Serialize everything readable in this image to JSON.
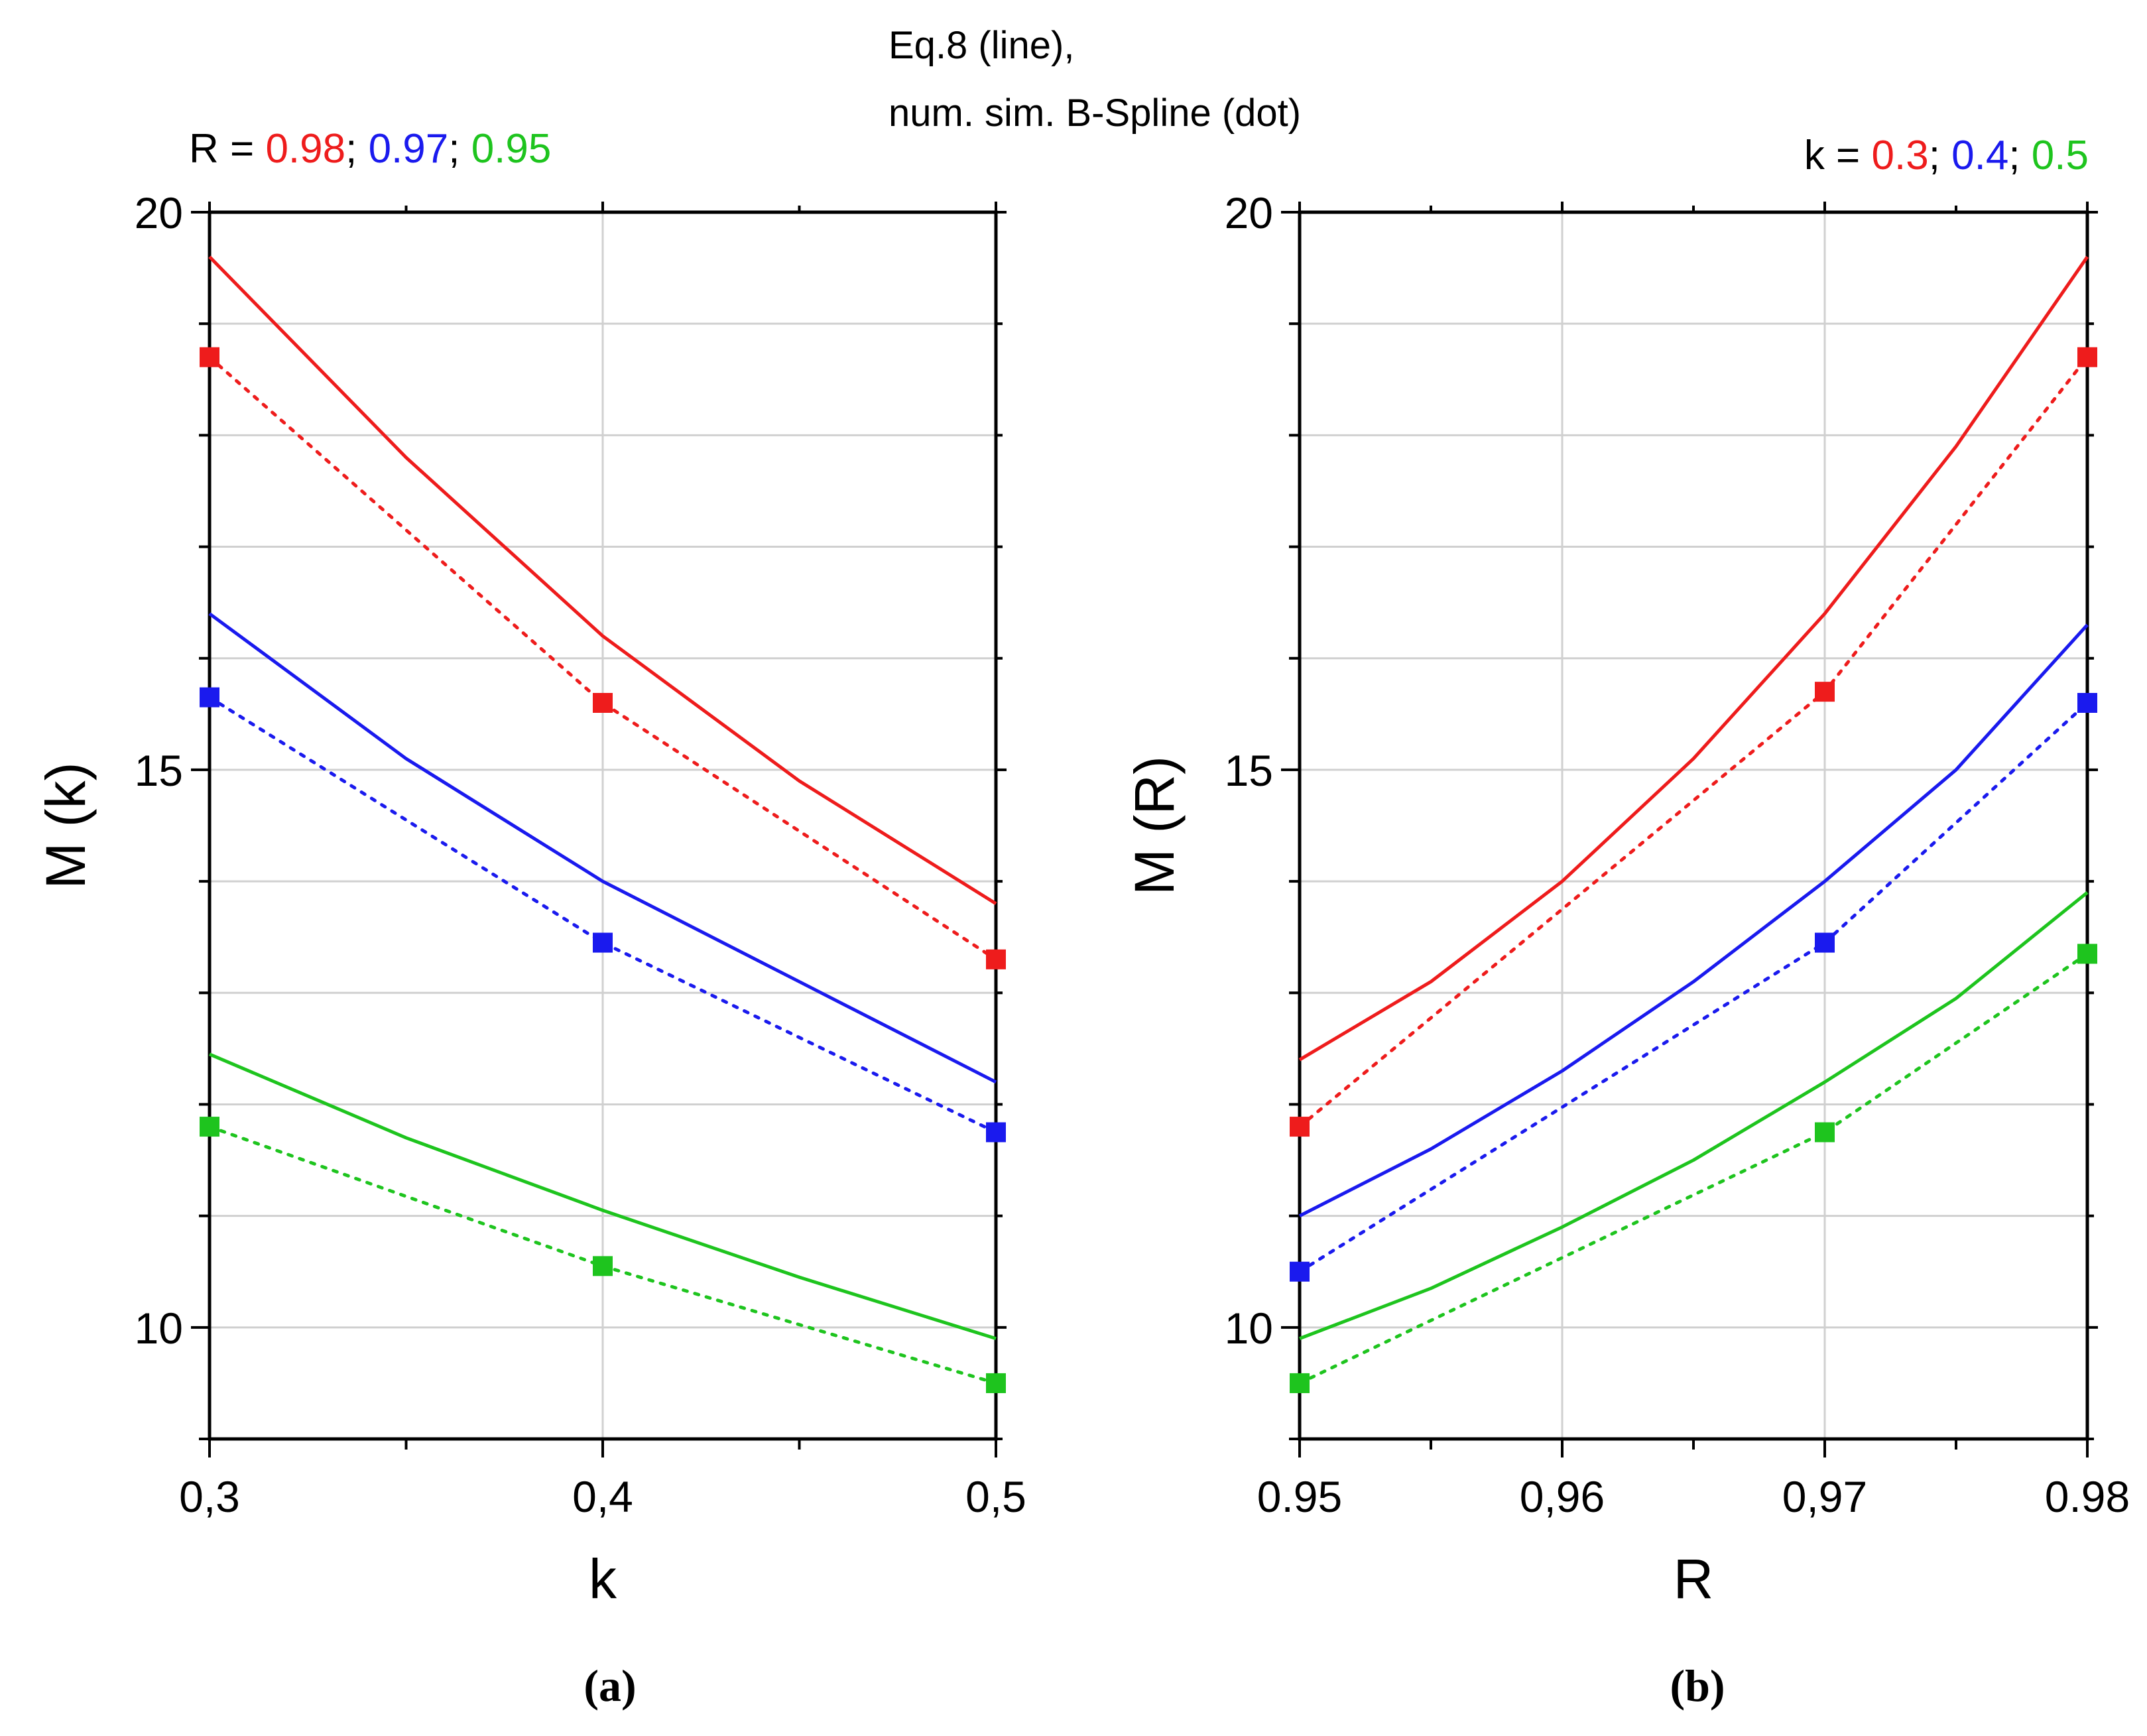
{
  "header": {
    "title_line1": "Eq.8 (line),",
    "title_line2": "num. sim. B-Spline (dot)"
  },
  "colors": {
    "red": "#ee1c1c",
    "blue": "#1a1aee",
    "green": "#1ec41e",
    "grid": "#d0d0d0",
    "axis": "#000000"
  },
  "chart_data": [
    {
      "type": "line",
      "panel": "(a)",
      "xlabel": "k",
      "ylabel": "M (k)",
      "xlim": [
        0.3,
        0.5
      ],
      "ylim": [
        9,
        20
      ],
      "xticks": [
        0.3,
        0.4,
        0.5
      ],
      "xtick_labels": [
        "0,3",
        "0,4",
        "0,5"
      ],
      "yticks": [
        10,
        15,
        20
      ],
      "ytick_labels": [
        "10",
        "15",
        "20"
      ],
      "legend_prefix": "R = ",
      "legend_sep": "; ",
      "legend": [
        "0.98",
        "0.97",
        "0.95"
      ],
      "series": [
        {
          "name": "R = 0.98",
          "color": "#ee1c1c",
          "line": {
            "x": [
              0.3,
              0.35,
              0.4,
              0.45,
              0.5
            ],
            "y": [
              19.6,
              17.8,
              16.2,
              14.9,
              13.8
            ]
          },
          "dots": {
            "x": [
              0.3,
              0.4,
              0.5
            ],
            "y": [
              18.7,
              15.6,
              13.3
            ]
          }
        },
        {
          "name": "R = 0.97",
          "color": "#1a1aee",
          "line": {
            "x": [
              0.3,
              0.35,
              0.4,
              0.45,
              0.5
            ],
            "y": [
              16.4,
              15.1,
              14.0,
              13.1,
              12.2
            ]
          },
          "dots": {
            "x": [
              0.3,
              0.4,
              0.5
            ],
            "y": [
              15.65,
              13.45,
              11.75
            ]
          }
        },
        {
          "name": "R = 0.95",
          "color": "#1ec41e",
          "line": {
            "x": [
              0.3,
              0.35,
              0.4,
              0.45,
              0.5
            ],
            "y": [
              12.45,
              11.7,
              11.05,
              10.45,
              9.9
            ]
          },
          "dots": {
            "x": [
              0.3,
              0.4,
              0.5
            ],
            "y": [
              11.8,
              10.55,
              9.5
            ]
          }
        }
      ]
    },
    {
      "type": "line",
      "panel": "(b)",
      "xlabel": "R",
      "ylabel": "M (R)",
      "xlim": [
        0.95,
        0.98
      ],
      "ylim": [
        9,
        20
      ],
      "xticks": [
        0.95,
        0.96,
        0.97,
        0.98
      ],
      "xtick_labels": [
        "0.95",
        "0,96",
        "0,97",
        "0.98"
      ],
      "yticks": [
        10,
        15,
        20
      ],
      "ytick_labels": [
        "10",
        "15",
        "20"
      ],
      "legend_prefix": "k = ",
      "legend_sep": "; ",
      "legend": [
        "0.3",
        "0.4",
        "0.5"
      ],
      "series": [
        {
          "name": "k = 0.3",
          "color": "#ee1c1c",
          "line": {
            "x": [
              0.95,
              0.955,
              0.96,
              0.965,
              0.97,
              0.975,
              0.98
            ],
            "y": [
              12.4,
              13.1,
              14.0,
              15.1,
              16.4,
              17.9,
              19.6
            ]
          },
          "dots": {
            "x": [
              0.95,
              0.97,
              0.98
            ],
            "y": [
              11.8,
              15.7,
              18.7
            ]
          }
        },
        {
          "name": "k = 0.4",
          "color": "#1a1aee",
          "line": {
            "x": [
              0.95,
              0.955,
              0.96,
              0.965,
              0.97,
              0.975,
              0.98
            ],
            "y": [
              11.0,
              11.6,
              12.3,
              13.1,
              14.0,
              15.0,
              16.3
            ]
          },
          "dots": {
            "x": [
              0.95,
              0.97,
              0.98
            ],
            "y": [
              10.5,
              13.45,
              15.6
            ]
          }
        },
        {
          "name": "k = 0.5",
          "color": "#1ec41e",
          "line": {
            "x": [
              0.95,
              0.955,
              0.96,
              0.965,
              0.97,
              0.975,
              0.98
            ],
            "y": [
              9.9,
              10.35,
              10.9,
              11.5,
              12.2,
              12.95,
              13.9
            ]
          },
          "dots": {
            "x": [
              0.95,
              0.97,
              0.98
            ],
            "y": [
              9.5,
              11.75,
              13.35
            ]
          }
        }
      ]
    }
  ]
}
